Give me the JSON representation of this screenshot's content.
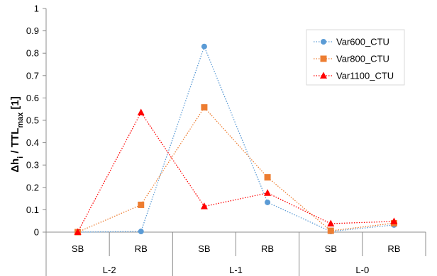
{
  "chart_data": {
    "type": "line",
    "ylabel": {
      "delta": "Δh",
      "sub_i": "i",
      "over": " / TTL",
      "sub_max": "max",
      "unit": " [1]"
    },
    "ylim": [
      0,
      1
    ],
    "yticks": [
      0,
      0.1,
      0.2,
      0.3,
      0.4,
      0.5,
      0.6,
      0.7,
      0.8,
      0.9,
      1
    ],
    "categories": [
      "SB",
      "RB",
      "SB",
      "RB",
      "SB",
      "RB"
    ],
    "groups": [
      "L-2",
      "L-1",
      "L-0"
    ],
    "legend_position": "top-right",
    "grid": false,
    "series": [
      {
        "name": "Var600_CTU",
        "color": "#5B9BD5",
        "marker": "circle",
        "values": [
          0.0,
          0.003,
          0.83,
          0.133,
          0.003,
          0.032
        ]
      },
      {
        "name": "Var800_CTU",
        "color": "#ED7D31",
        "marker": "square",
        "values": [
          0.0,
          0.122,
          0.558,
          0.245,
          0.006,
          0.04
        ]
      },
      {
        "name": "Var1100_CTU",
        "color": "#FF0000",
        "marker": "triangle",
        "values": [
          0.0,
          0.535,
          0.115,
          0.175,
          0.038,
          0.048
        ]
      }
    ]
  }
}
